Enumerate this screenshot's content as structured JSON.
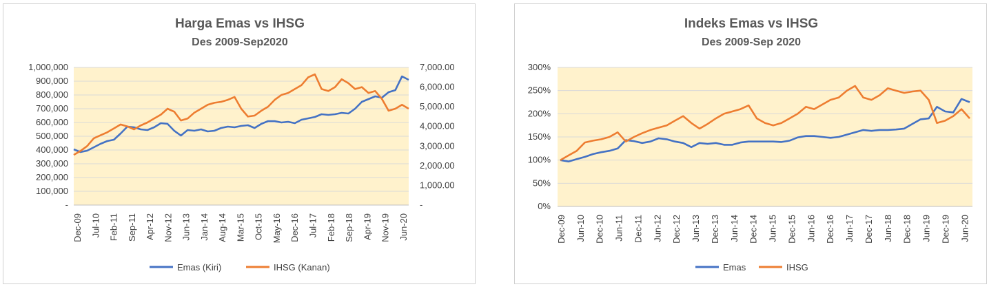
{
  "colors": {
    "emas": "#4472C4",
    "ihsg": "#ED7D31",
    "plot_bg": "#FFF2CC",
    "grid": "#D9D9D9",
    "text": "#404040",
    "title": "#595959"
  },
  "chart_data": [
    {
      "type": "line",
      "title": "Harga Emas vs IHSG",
      "subtitle": "Des 2009-Sep2020",
      "x_tick_labels": [
        "Dec-09",
        "Jul-10",
        "Feb-11",
        "Sep-11",
        "Apr-12",
        "Nov-12",
        "Jun-13",
        "Jan-14",
        "Aug-14",
        "Mar-15",
        "Oct-15",
        "May-16",
        "Dec-16",
        "Jul-17",
        "Feb-18",
        "Sep-18",
        "Apr-19",
        "Nov-19",
        "Jun-20"
      ],
      "y_left": {
        "ticks": [
          0,
          100000,
          200000,
          300000,
          400000,
          500000,
          600000,
          700000,
          800000,
          900000,
          1000000
        ],
        "tick_labels": [
          "-",
          "100,000",
          "200,000",
          "300,000",
          "400,000",
          "500,000",
          "600,000",
          "700,000",
          "800,000",
          "900,000",
          "1,000,000"
        ],
        "ylim": [
          0,
          1000000
        ]
      },
      "y_right": {
        "ticks": [
          0,
          1000,
          2000,
          3000,
          4000,
          5000,
          6000,
          7000
        ],
        "tick_labels": [
          "-",
          "1,000.00",
          "2,000.00",
          "3,000.00",
          "4,000.00",
          "5,000.00",
          "6,000.00",
          "7,000.00"
        ],
        "ylim": [
          0,
          7000
        ]
      },
      "legend_position": "bottom",
      "series": [
        {
          "name": "Emas (Kiri)",
          "axis": "left",
          "color": "#4472C4",
          "values": [
            405000,
            385000,
            395000,
            420000,
            445000,
            465000,
            475000,
            520000,
            570000,
            565000,
            550000,
            545000,
            565000,
            595000,
            590000,
            540000,
            505000,
            545000,
            540000,
            550000,
            535000,
            540000,
            560000,
            570000,
            565000,
            575000,
            580000,
            560000,
            590000,
            610000,
            610000,
            600000,
            605000,
            595000,
            620000,
            630000,
            640000,
            660000,
            655000,
            660000,
            670000,
            665000,
            700000,
            750000,
            770000,
            790000,
            780000,
            820000,
            835000,
            935000,
            910000
          ]
        },
        {
          "name": "IHSG (Kanan)",
          "axis": "right",
          "color": "#ED7D31",
          "values": [
            2550,
            2750,
            3000,
            3400,
            3550,
            3700,
            3900,
            4100,
            4000,
            3850,
            4050,
            4200,
            4400,
            4600,
            4900,
            4750,
            4300,
            4400,
            4700,
            4900,
            5100,
            5200,
            5250,
            5350,
            5500,
            4900,
            4500,
            4550,
            4800,
            5000,
            5350,
            5600,
            5700,
            5900,
            6100,
            6500,
            6650,
            5900,
            5800,
            6000,
            6400,
            6200,
            5900,
            6000,
            5700,
            5800,
            5400,
            4800,
            4900,
            5100,
            4900
          ]
        }
      ]
    },
    {
      "type": "line",
      "title": "Indeks Emas vs IHSG",
      "subtitle": "Des 2009-Sep 2020",
      "x_tick_labels": [
        "Dec-09",
        "Jun-10",
        "Dec-10",
        "Jun-11",
        "Dec-11",
        "Jun-12",
        "Dec-12",
        "Jun-13",
        "Dec-13",
        "Jun-14",
        "Dec-14",
        "Jun-15",
        "Dec-15",
        "Jun-16",
        "Dec-16",
        "Jun-17",
        "Dec-17",
        "Jun-18",
        "Dec-18",
        "Jun-19",
        "Dec-19",
        "Jun-20"
      ],
      "y": {
        "ticks": [
          0,
          50,
          100,
          150,
          200,
          250,
          300
        ],
        "tick_labels": [
          "0%",
          "50%",
          "100%",
          "150%",
          "200%",
          "250%",
          "300%"
        ],
        "ylim": [
          0,
          300
        ]
      },
      "legend_position": "bottom",
      "series": [
        {
          "name": "Emas",
          "color": "#4472C4",
          "values": [
            100,
            97,
            102,
            107,
            113,
            117,
            120,
            125,
            143,
            141,
            137,
            140,
            147,
            145,
            140,
            137,
            128,
            137,
            135,
            137,
            133,
            133,
            138,
            140,
            140,
            140,
            140,
            139,
            142,
            149,
            152,
            152,
            150,
            148,
            150,
            155,
            160,
            165,
            163,
            165,
            165,
            166,
            168,
            178,
            188,
            190,
            215,
            205,
            203,
            232,
            225
          ]
        },
        {
          "name": "IHSG",
          "color": "#ED7D31",
          "values": [
            100,
            110,
            120,
            138,
            142,
            145,
            150,
            160,
            140,
            150,
            158,
            165,
            170,
            175,
            185,
            195,
            180,
            168,
            178,
            190,
            200,
            205,
            210,
            218,
            190,
            180,
            175,
            180,
            190,
            200,
            215,
            210,
            220,
            230,
            235,
            250,
            260,
            235,
            230,
            240,
            255,
            250,
            245,
            248,
            250,
            230,
            180,
            185,
            195,
            210,
            190
          ]
        }
      ]
    }
  ]
}
